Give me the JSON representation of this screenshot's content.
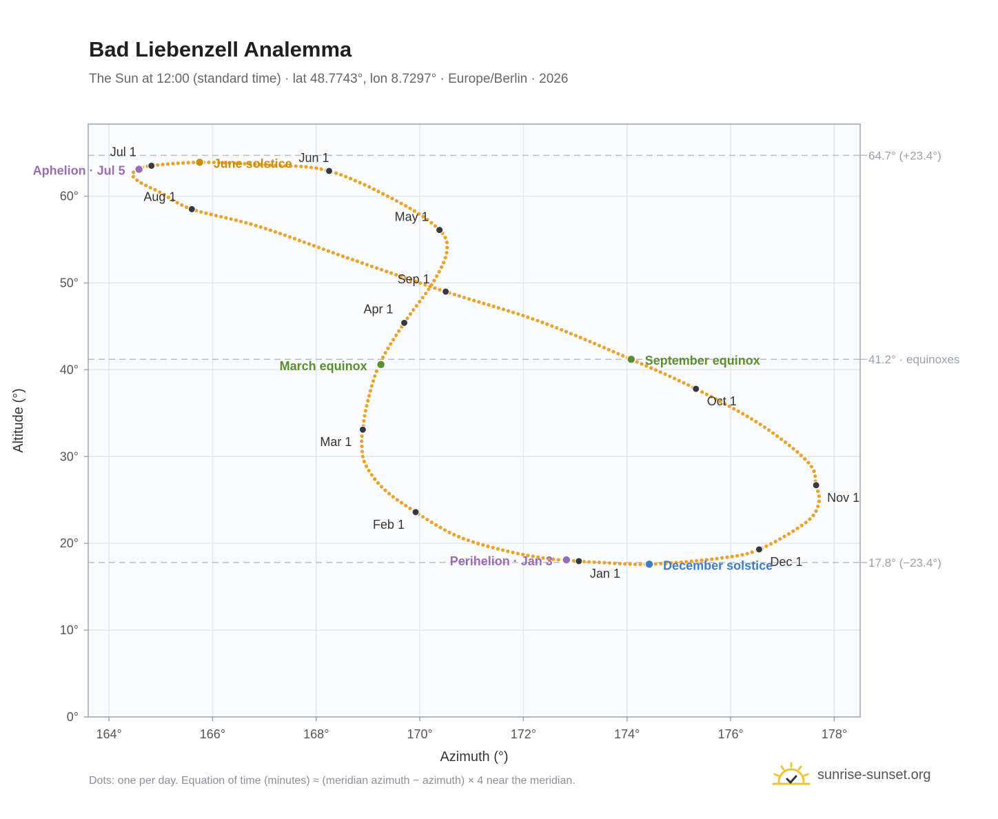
{
  "page": {
    "title": "Bad Liebenzell Analemma",
    "subtitle": "The Sun at 12:00 (standard time) · lat 48.7743°, lon 8.7297° · Europe/Berlin · 2026",
    "footnote": "Dots: one per day. Equation of time (minutes) ≈ (meridian azimuth − azimuth) × 4 near the meridian.",
    "brand": "sunrise-sunset.org",
    "brand_icon": "sun-logo-icon"
  },
  "chart_data": {
    "type": "scatter",
    "xlabel": "Azimuth (°)",
    "ylabel": "Altitude (°)",
    "xlim": [
      163.6,
      178.5
    ],
    "ylim": [
      0,
      68.3
    ],
    "xticks": [
      164,
      166,
      168,
      170,
      172,
      174,
      176,
      178
    ],
    "yticks": [
      0,
      10,
      20,
      30,
      40,
      50,
      60
    ],
    "tick_suffix": "°",
    "grid": true,
    "colors": {
      "path": "#f0a024",
      "month": "#37393f",
      "solstice_june": "#c8900e",
      "solstice_december": "#3a7dc8",
      "equinox": "#5a8f2e",
      "aphelion_perihelion": "#9a6cb8",
      "reference": "#9aa0a8",
      "plot_bg": "#f9fbfd",
      "frame": "#98a4b3"
    },
    "reference_lines": [
      {
        "y": 64.7,
        "label": "64.7° (+23.4°)"
      },
      {
        "y": 41.2,
        "label": "41.2° · equinoxes"
      },
      {
        "y": 17.8,
        "label": "17.8° (−23.4°)"
      }
    ],
    "months": [
      {
        "label": "Jan 1",
        "x": 173.07,
        "y": 17.95
      },
      {
        "label": "Feb 1",
        "x": 169.92,
        "y": 23.6
      },
      {
        "label": "Mar 1",
        "x": 168.9,
        "y": 33.1
      },
      {
        "label": "Apr 1",
        "x": 169.7,
        "y": 45.4
      },
      {
        "label": "May 1",
        "x": 170.38,
        "y": 56.1
      },
      {
        "label": "Jun 1",
        "x": 168.25,
        "y": 62.9
      },
      {
        "label": "Jul 1",
        "x": 164.82,
        "y": 63.5
      },
      {
        "label": "Aug 1",
        "x": 165.6,
        "y": 58.5
      },
      {
        "label": "Sep 1",
        "x": 170.5,
        "y": 49.0
      },
      {
        "label": "Oct 1",
        "x": 175.33,
        "y": 37.8
      },
      {
        "label": "Nov 1",
        "x": 177.65,
        "y": 26.7
      },
      {
        "label": "Dec 1",
        "x": 176.55,
        "y": 19.3
      }
    ],
    "events": [
      {
        "label": "June solstice",
        "x": 165.75,
        "y": 63.9,
        "kind": "solstice_june"
      },
      {
        "label": "Aphelion · Jul 5",
        "x": 164.58,
        "y": 63.1,
        "kind": "aphelion_perihelion"
      },
      {
        "label": "March equinox",
        "x": 169.25,
        "y": 40.6,
        "kind": "equinox"
      },
      {
        "label": "September equinox",
        "x": 174.08,
        "y": 41.2,
        "kind": "equinox"
      },
      {
        "label": "Perihelion · Jan 3",
        "x": 172.83,
        "y": 18.1,
        "kind": "aphelion_perihelion"
      },
      {
        "label": "December solstice",
        "x": 174.43,
        "y": 17.6,
        "kind": "solstice_december"
      }
    ],
    "path": [
      [
        173.07,
        17.95
      ],
      [
        172.4,
        18.3
      ],
      [
        171.55,
        19.3
      ],
      [
        170.7,
        20.9
      ],
      [
        169.92,
        23.6
      ],
      [
        169.3,
        26.3
      ],
      [
        168.95,
        29.1
      ],
      [
        168.88,
        31.4
      ],
      [
        168.9,
        33.1
      ],
      [
        168.98,
        36.0
      ],
      [
        169.22,
        40.6
      ],
      [
        169.7,
        45.4
      ],
      [
        170.25,
        50.0
      ],
      [
        170.52,
        53.6
      ],
      [
        170.38,
        56.1
      ],
      [
        169.6,
        59.3
      ],
      [
        168.25,
        62.9
      ],
      [
        167.0,
        63.6
      ],
      [
        165.75,
        63.9
      ],
      [
        164.82,
        63.5
      ],
      [
        164.58,
        63.1
      ],
      [
        164.45,
        62.5
      ],
      [
        164.6,
        61.6
      ],
      [
        165.0,
        60.4
      ],
      [
        165.6,
        58.5
      ],
      [
        166.9,
        56.5
      ],
      [
        168.6,
        52.9
      ],
      [
        170.5,
        49.0
      ],
      [
        172.3,
        45.6
      ],
      [
        174.08,
        41.2
      ],
      [
        175.33,
        37.8
      ],
      [
        176.6,
        33.6
      ],
      [
        177.5,
        29.3
      ],
      [
        177.65,
        26.7
      ],
      [
        177.7,
        24.6
      ],
      [
        177.45,
        22.4
      ],
      [
        176.55,
        19.3
      ],
      [
        175.8,
        18.3
      ],
      [
        174.43,
        17.6
      ],
      [
        173.5,
        17.8
      ],
      [
        173.07,
        17.95
      ]
    ]
  }
}
